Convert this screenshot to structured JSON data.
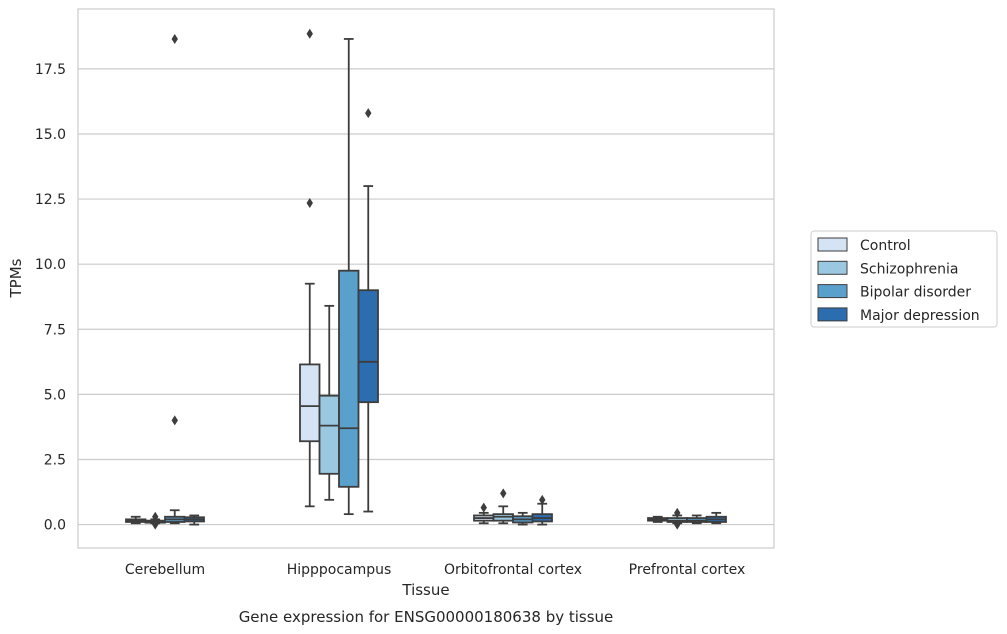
{
  "caption": "Gene expression for ENSG00000180638 by tissue",
  "chart_data": {
    "type": "box",
    "xlabel": "Tissue",
    "ylabel": "TPMs",
    "ylim": [
      -0.9,
      19.8
    ],
    "yticks": [
      0.0,
      2.5,
      5.0,
      7.5,
      10.0,
      12.5,
      15.0,
      17.5
    ],
    "ytick_labels": [
      "0.0",
      "2.5",
      "5.0",
      "7.5",
      "10.0",
      "12.5",
      "15.0",
      "17.5"
    ],
    "grid": "horizontal",
    "legend_position": "right",
    "categories": [
      "Cerebellum",
      "Hipppocampus",
      "Orbitofrontal cortex",
      "Prefrontal cortex"
    ],
    "series": [
      {
        "name": "Control",
        "color": "#d5e4f4",
        "boxes": [
          {
            "whisker_low": 0.05,
            "q1": 0.1,
            "median": 0.15,
            "q3": 0.2,
            "whisker_high": 0.3,
            "outliers": []
          },
          {
            "whisker_low": 0.7,
            "q1": 3.2,
            "median": 4.55,
            "q3": 6.15,
            "whisker_high": 9.25,
            "outliers": [
              12.35,
              18.85
            ]
          },
          {
            "whisker_low": 0.05,
            "q1": 0.15,
            "median": 0.25,
            "q3": 0.35,
            "whisker_high": 0.45,
            "outliers": [
              0.65
            ]
          },
          {
            "whisker_low": 0.1,
            "q1": 0.15,
            "median": 0.2,
            "q3": 0.25,
            "whisker_high": 0.3,
            "outliers": []
          }
        ]
      },
      {
        "name": "Schizophrenia",
        "color": "#9ac8e0",
        "boxes": [
          {
            "whisker_low": 0.05,
            "q1": 0.1,
            "median": 0.12,
            "q3": 0.15,
            "whisker_high": 0.2,
            "outliers": [
              0.0,
              0.3
            ]
          },
          {
            "whisker_low": 0.95,
            "q1": 1.95,
            "median": 3.8,
            "q3": 4.95,
            "whisker_high": 8.4,
            "outliers": []
          },
          {
            "whisker_low": 0.05,
            "q1": 0.15,
            "median": 0.3,
            "q3": 0.4,
            "whisker_high": 0.7,
            "outliers": [
              1.2
            ]
          },
          {
            "whisker_low": 0.05,
            "q1": 0.1,
            "median": 0.15,
            "q3": 0.25,
            "whisker_high": 0.35,
            "outliers": [
              0.0,
              0.45
            ]
          }
        ]
      },
      {
        "name": "Bipolar disorder",
        "color": "#5aa0cd",
        "boxes": [
          {
            "whisker_low": 0.05,
            "q1": 0.1,
            "median": 0.2,
            "q3": 0.3,
            "whisker_high": 0.55,
            "outliers": [
              4.0,
              18.65
            ]
          },
          {
            "whisker_low": 0.4,
            "q1": 1.45,
            "median": 3.7,
            "q3": 9.75,
            "whisker_high": 18.65,
            "outliers": []
          },
          {
            "whisker_low": 0.0,
            "q1": 0.08,
            "median": 0.2,
            "q3": 0.32,
            "whisker_high": 0.45,
            "outliers": []
          },
          {
            "whisker_low": 0.05,
            "q1": 0.1,
            "median": 0.15,
            "q3": 0.25,
            "whisker_high": 0.35,
            "outliers": []
          }
        ]
      },
      {
        "name": "Major depression",
        "color": "#2b6daf",
        "boxes": [
          {
            "whisker_low": 0.0,
            "q1": 0.12,
            "median": 0.2,
            "q3": 0.28,
            "whisker_high": 0.35,
            "outliers": []
          },
          {
            "whisker_low": 0.5,
            "q1": 4.7,
            "median": 6.25,
            "q3": 9.0,
            "whisker_high": 13.0,
            "outliers": [
              15.8
            ]
          },
          {
            "whisker_low": 0.0,
            "q1": 0.12,
            "median": 0.25,
            "q3": 0.4,
            "whisker_high": 0.8,
            "outliers": [
              0.95
            ]
          },
          {
            "whisker_low": 0.05,
            "q1": 0.1,
            "median": 0.2,
            "q3": 0.3,
            "whisker_high": 0.45,
            "outliers": []
          }
        ]
      }
    ]
  }
}
